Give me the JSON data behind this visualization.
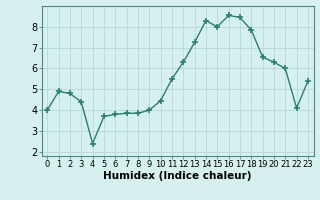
{
  "x": [
    0,
    1,
    2,
    3,
    4,
    5,
    6,
    7,
    8,
    9,
    10,
    11,
    12,
    13,
    14,
    15,
    16,
    17,
    18,
    19,
    20,
    21,
    22,
    23
  ],
  "y": [
    4.0,
    4.9,
    4.8,
    4.4,
    2.4,
    3.7,
    3.8,
    3.85,
    3.85,
    4.0,
    4.45,
    5.5,
    6.3,
    7.25,
    8.3,
    8.0,
    8.55,
    8.45,
    7.85,
    6.55,
    6.3,
    6.0,
    4.1,
    5.4
  ],
  "line_color": "#2e7d6e",
  "marker": "+",
  "marker_size": 4,
  "line_width": 1.0,
  "xlabel": "Humidex (Indice chaleur)",
  "xlabel_fontsize": 7.5,
  "xlabel_bold": true,
  "ylim": [
    1.8,
    9.0
  ],
  "xlim": [
    -0.5,
    23.5
  ],
  "yticks": [
    2,
    3,
    4,
    5,
    6,
    7,
    8
  ],
  "xticks": [
    0,
    1,
    2,
    3,
    4,
    5,
    6,
    7,
    8,
    9,
    10,
    11,
    12,
    13,
    14,
    15,
    16,
    17,
    18,
    19,
    20,
    21,
    22,
    23
  ],
  "xtick_fontsize": 6,
  "ytick_fontsize": 7,
  "background_color": "#d6efef",
  "grid_color": "#b8d8d8",
  "spine_color": "#4a8a7a"
}
